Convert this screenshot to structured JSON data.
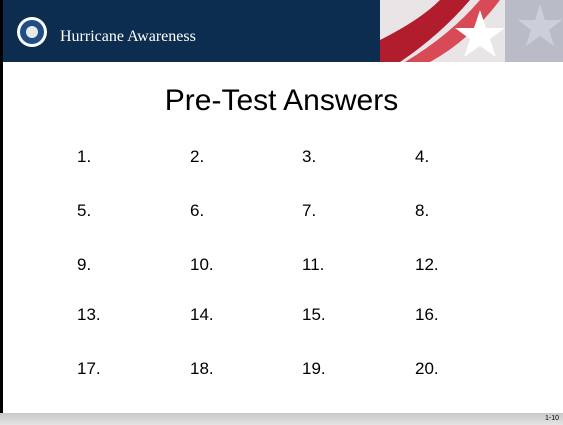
{
  "header": {
    "title": "Hurricane Awareness"
  },
  "title": "Pre-Test Answers",
  "answers": {
    "rows": [
      [
        "1.",
        "2.",
        "3.",
        "4."
      ],
      [
        "5.",
        "6.",
        "7.",
        "8."
      ],
      [
        "9.",
        "10.",
        "11.",
        "12."
      ],
      [
        "13.",
        "14.",
        "15.",
        "16."
      ],
      [
        "17.",
        "18.",
        "19.",
        "20."
      ]
    ]
  },
  "footer": {
    "page": "1-10"
  }
}
